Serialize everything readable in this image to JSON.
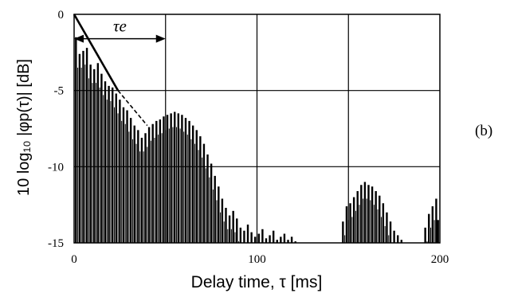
{
  "chart_data": {
    "type": "bar",
    "panel_label": "(b)",
    "xlabel": "Delay time, τ [ms]",
    "ylabel": "10 log₁₀ |φp(τ)| [dB]",
    "xlim": [
      0,
      200
    ],
    "ylim": [
      -15,
      0
    ],
    "xticks": [
      "0",
      "100",
      "200"
    ],
    "yticks": [
      "0",
      "-5",
      "-10",
      "-15"
    ],
    "grid": true,
    "annotation": {
      "text": "τe",
      "arrow_from_ms": 0,
      "arrow_to_ms": 50,
      "at_db": -1.6
    },
    "envelope_line": {
      "x": [
        0,
        24
      ],
      "y": [
        0,
        -5
      ]
    },
    "envelope_dashed": {
      "x": [
        24,
        40
      ],
      "y": [
        -5,
        -7.3
      ]
    },
    "peaks": [
      {
        "x": 1,
        "y": -1.5
      },
      {
        "x": 3,
        "y": -2.6
      },
      {
        "x": 5,
        "y": -2.4
      },
      {
        "x": 7,
        "y": -2.2
      },
      {
        "x": 9,
        "y": -3.3
      },
      {
        "x": 11,
        "y": -3.6
      },
      {
        "x": 13,
        "y": -3.2
      },
      {
        "x": 15,
        "y": -3.9
      },
      {
        "x": 17,
        "y": -4.4
      },
      {
        "x": 19,
        "y": -4.7
      },
      {
        "x": 21,
        "y": -4.8
      },
      {
        "x": 23,
        "y": -5.2
      },
      {
        "x": 25,
        "y": -5.6
      },
      {
        "x": 27,
        "y": -6.1
      },
      {
        "x": 29,
        "y": -6.3
      },
      {
        "x": 31,
        "y": -6.8
      },
      {
        "x": 33,
        "y": -7.3
      },
      {
        "x": 35,
        "y": -7.6
      },
      {
        "x": 37,
        "y": -8.1
      },
      {
        "x": 39,
        "y": -7.8
      },
      {
        "x": 41,
        "y": -7.4
      },
      {
        "x": 43,
        "y": -7.2
      },
      {
        "x": 45,
        "y": -7.0
      },
      {
        "x": 47,
        "y": -6.9
      },
      {
        "x": 49,
        "y": -6.7
      },
      {
        "x": 51,
        "y": -6.6
      },
      {
        "x": 53,
        "y": -6.5
      },
      {
        "x": 55,
        "y": -6.4
      },
      {
        "x": 57,
        "y": -6.5
      },
      {
        "x": 59,
        "y": -6.6
      },
      {
        "x": 61,
        "y": -6.8
      },
      {
        "x": 63,
        "y": -7.0
      },
      {
        "x": 65,
        "y": -7.3
      },
      {
        "x": 67,
        "y": -7.6
      },
      {
        "x": 69,
        "y": -8.0
      },
      {
        "x": 71,
        "y": -8.5
      },
      {
        "x": 73,
        "y": -9.2
      },
      {
        "x": 75,
        "y": -9.8
      },
      {
        "x": 77,
        "y": -10.6
      },
      {
        "x": 79,
        "y": -11.3
      },
      {
        "x": 81,
        "y": -12.1
      },
      {
        "x": 83,
        "y": -12.7
      },
      {
        "x": 85,
        "y": -13.2
      },
      {
        "x": 87,
        "y": -12.9
      },
      {
        "x": 89,
        "y": -13.4
      },
      {
        "x": 91,
        "y": -14.0
      },
      {
        "x": 93,
        "y": -14.2
      },
      {
        "x": 95,
        "y": -13.8
      },
      {
        "x": 97,
        "y": -14.3
      },
      {
        "x": 99,
        "y": -14.6
      },
      {
        "x": 101,
        "y": -14.4
      },
      {
        "x": 103,
        "y": -14.1
      },
      {
        "x": 105,
        "y": -14.7
      },
      {
        "x": 107,
        "y": -14.5
      },
      {
        "x": 109,
        "y": -14.2
      },
      {
        "x": 111,
        "y": -14.8
      },
      {
        "x": 113,
        "y": -14.6
      },
      {
        "x": 115,
        "y": -14.4
      },
      {
        "x": 117,
        "y": -14.8
      },
      {
        "x": 119,
        "y": -14.6
      },
      {
        "x": 121,
        "y": -14.9
      },
      {
        "x": 147,
        "y": -13.6
      },
      {
        "x": 149,
        "y": -12.6
      },
      {
        "x": 151,
        "y": -12.4
      },
      {
        "x": 153,
        "y": -12.0
      },
      {
        "x": 155,
        "y": -11.6
      },
      {
        "x": 157,
        "y": -11.2
      },
      {
        "x": 159,
        "y": -11.0
      },
      {
        "x": 161,
        "y": -11.2
      },
      {
        "x": 163,
        "y": -11.3
      },
      {
        "x": 165,
        "y": -11.6
      },
      {
        "x": 167,
        "y": -11.9
      },
      {
        "x": 169,
        "y": -12.4
      },
      {
        "x": 171,
        "y": -13.0
      },
      {
        "x": 173,
        "y": -13.6
      },
      {
        "x": 175,
        "y": -14.2
      },
      {
        "x": 177,
        "y": -14.5
      },
      {
        "x": 179,
        "y": -14.8
      },
      {
        "x": 192,
        "y": -14.0
      },
      {
        "x": 194,
        "y": -13.1
      },
      {
        "x": 196,
        "y": -12.6
      },
      {
        "x": 198,
        "y": -12.1
      },
      {
        "x": 199,
        "y": -13.5
      }
    ]
  }
}
